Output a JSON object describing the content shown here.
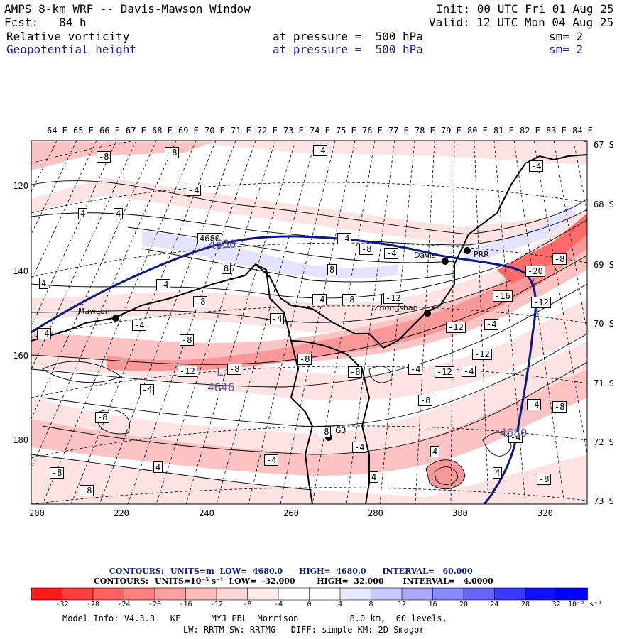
{
  "header": {
    "title": "AMPS 8-km WRF -- Davis-Mawson Window",
    "init": "Init: 00 UTC Fri 01 Aug 25",
    "fcst": "Fcst:   84 h",
    "valid": "Valid: 12 UTC Mon 04 Aug 25",
    "field1": "Relative vorticity",
    "field1_level": "at pressure =  500 hPa",
    "field1_sm": "sm= 2",
    "field2": "Geopotential height",
    "field2_level": "at pressure =  500 hPa",
    "field2_sm": "sm= 2"
  },
  "map": {
    "lon_labels": [
      "64 E",
      "65 E",
      "66 E",
      "67 E",
      "68 E",
      "69 E",
      "70 E",
      "71 E",
      "72 E",
      "73 E",
      "74 E",
      "75 E",
      "76 E",
      "77 E",
      "78 E",
      "79 E",
      "80 E",
      "81 E",
      "82 E",
      "83 E",
      "84 E"
    ],
    "lat_labels": [
      "67 S",
      "68 S",
      "69 S",
      "70 S",
      "71 S",
      "72 S",
      "73 S"
    ],
    "y_ticks": [
      "120",
      "140",
      "160",
      "180"
    ],
    "x_ticks": [
      "200",
      "220",
      "240",
      "260",
      "280",
      "300",
      "320"
    ],
    "stations": [
      "Mawson",
      "Davis",
      "Zhongshan",
      "G3",
      "PRR"
    ],
    "height_labels": [
      "4680",
      "4646",
      "4680"
    ],
    "low_label": "L",
    "vort_labels": [
      "-8",
      "-8",
      "-4",
      "-4",
      "4",
      "4",
      "-4",
      "4680",
      "-4",
      "-8",
      "-4",
      "8",
      "8",
      "4",
      "-4",
      "-8",
      "-4",
      "-8",
      "-8",
      "-4",
      "-4",
      "-8",
      "-12",
      "-12",
      "-20",
      "-8",
      "-16",
      "-12",
      "-12",
      "-4",
      "-12",
      "-8",
      "-4",
      "-8",
      "-12",
      "-8",
      "-8",
      "-4",
      "-4",
      "-8",
      "-8",
      "-4",
      "-8",
      "4",
      "-4",
      "-4",
      "4",
      "4",
      "4",
      "-8",
      "-8",
      "-4",
      "-8",
      "-4"
    ]
  },
  "contours": {
    "line1_label": "CONTOURS:",
    "line1": "UNITS=m  LOW=  4680.0      HIGH=  4680.0      INTERVAL=   60.000",
    "line2_label": "CONTOURS:",
    "line2": "UNITS=10⁻⁵ s⁻¹  LOW=  -32.000        HIGH=  32.000       INTERVAL=   4.0000"
  },
  "colorbar": {
    "ticks": [
      "-32",
      "-28",
      "-24",
      "-20",
      "-16",
      "-12",
      "-8",
      "-4",
      "0",
      "4",
      "8",
      "12",
      "16",
      "20",
      "24",
      "28",
      "32"
    ],
    "unit": "10⁻⁵ s⁻¹",
    "colors": [
      "#ff1a1a",
      "#ff4040",
      "#ff6060",
      "#ff8080",
      "#fca0a0",
      "#fcbcbc",
      "#fdd6d6",
      "#feecec",
      "#ffffff",
      "#ffffff",
      "#e8e8ff",
      "#c8c8ff",
      "#a8a8ff",
      "#8888ff",
      "#6666ff",
      "#3a3aff",
      "#0f0fff"
    ]
  },
  "footer": {
    "line1": "Model Info: V4.3.3   KF      MYJ PBL  Morrison          8.0 km,  60 levels,",
    "line2": "LW: RRTM SW: RRTMG   DIFF: simple KM: 2D Smagor"
  }
}
